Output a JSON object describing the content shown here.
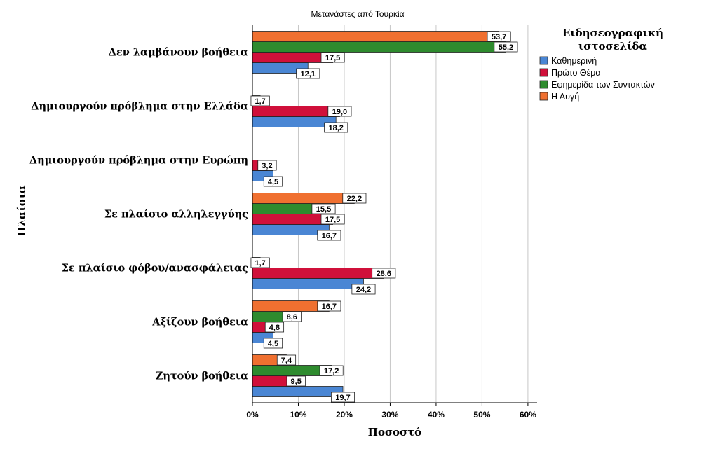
{
  "chart_data": {
    "type": "bar",
    "orientation": "horizontal",
    "title": "Μετανάστες από Τουρκία",
    "xlabel": "Ποσοστό",
    "ylabel": "Πλαίσια",
    "xlim": [
      0,
      62
    ],
    "xticks": [
      0,
      10,
      20,
      30,
      40,
      50,
      60
    ],
    "xtick_labels": [
      "0%",
      "10%",
      "20%",
      "30%",
      "40%",
      "50%",
      "60%"
    ],
    "grid": true,
    "legend_position": "right",
    "legend_title": [
      "Ειδησεογραφική",
      "ιστοσελίδα"
    ],
    "categories": [
      "Δεν λαμβάνουν βοήθεια",
      "Δημιουργούν πρόβλημα στην Ελλάδα",
      "Δημιουργούν πρόβλημα στην Ευρώπη",
      "Σε πλαίσιο αλληλεγγύης",
      "Σε πλαίσιο φόβου/ανασφάλειας",
      "Αξίζουν βοήθεια",
      "Ζητούν βοήθεια"
    ],
    "series": [
      {
        "name": "Καθημερινή",
        "color": "#4A86D4",
        "values": [
          12.1,
          18.2,
          4.5,
          16.7,
          24.2,
          4.5,
          19.7
        ],
        "labels": [
          "12,1",
          "18,2",
          "4,5",
          "16,7",
          "24,2",
          "4,5",
          "19,7"
        ]
      },
      {
        "name": "Πρώτο Θέμα",
        "color": "#D0103A",
        "values": [
          17.5,
          19.0,
          3.2,
          17.5,
          28.6,
          4.8,
          9.5
        ],
        "labels": [
          "17,5",
          "19,0",
          "3,2",
          "17,5",
          "28,6",
          "4,8",
          "9,5"
        ]
      },
      {
        "name": "Εφημερίδα των Συντακτών",
        "color": "#2E8B2E",
        "values": [
          55.2,
          1.7,
          null,
          15.5,
          1.7,
          8.6,
          17.2
        ],
        "labels": [
          "55,2",
          "1,7",
          null,
          "15,5",
          "1,7",
          "8,6",
          "17,2"
        ]
      },
      {
        "name": "Η Αυγή",
        "color": "#F07030",
        "values": [
          53.7,
          null,
          null,
          22.2,
          null,
          16.7,
          7.4
        ],
        "labels": [
          "53,7",
          null,
          null,
          "22,2",
          null,
          "16,7",
          "7,4"
        ]
      }
    ]
  }
}
